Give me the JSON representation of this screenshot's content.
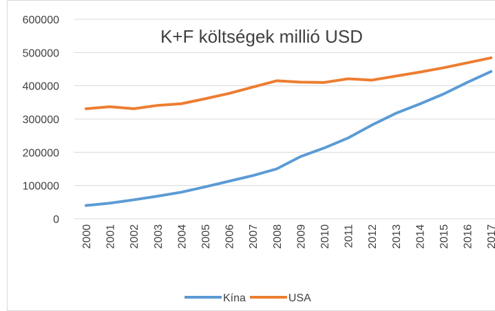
{
  "chart_data": {
    "type": "line",
    "title": "K+F költségek millió USD",
    "categories": [
      "2000",
      "2001",
      "2002",
      "2003",
      "2004",
      "2005",
      "2006",
      "2007",
      "2008",
      "2009",
      "2010",
      "2011",
      "2012",
      "2013",
      "2014",
      "2015",
      "2016",
      "2017"
    ],
    "series": [
      {
        "name": "Kína",
        "color": "#5b9bd5",
        "values": [
          40000,
          47000,
          57000,
          68000,
          80000,
          96000,
          113000,
          130000,
          150000,
          187000,
          213000,
          243000,
          282000,
          317000,
          345000,
          375000,
          410000,
          443000
        ]
      },
      {
        "name": "USA",
        "color": "#ed7d31",
        "values": [
          331000,
          337000,
          331000,
          341000,
          346000,
          361000,
          377000,
          396000,
          415000,
          411000,
          410000,
          421000,
          417000,
          429000,
          441000,
          454000,
          469000,
          484000
        ]
      }
    ],
    "ylim": [
      0,
      600000
    ],
    "yticks": [
      0,
      100000,
      200000,
      300000,
      400000,
      500000,
      600000
    ],
    "grid": true,
    "legend": "bottom"
  }
}
